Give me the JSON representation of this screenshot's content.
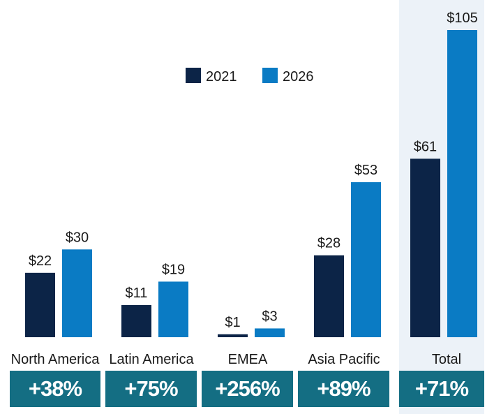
{
  "colors": {
    "series_2021": "#0c2447",
    "series_2026": "#0a7bc4",
    "total_highlight": "#ecf2f8",
    "growth_box": "#146e83",
    "growth_text": "#ffffff",
    "label_text": "#1a1a1a"
  },
  "chart_data": {
    "type": "bar",
    "categories": [
      "North America",
      "Latin America",
      "EMEA",
      "Asia Pacific",
      "Total"
    ],
    "series": [
      {
        "name": "2021",
        "values": [
          22,
          11,
          1,
          28,
          61
        ],
        "labels": [
          "$22",
          "$11",
          "$1",
          "$28",
          "$61"
        ]
      },
      {
        "name": "2026",
        "values": [
          30,
          19,
          3,
          53,
          105
        ],
        "labels": [
          "$30",
          "$19",
          "$3",
          "$53",
          "$105"
        ]
      }
    ],
    "growth": [
      "+38%",
      "+75%",
      "+256%",
      "+89%",
      "+71%"
    ],
    "highlighted_category": "Total",
    "legend_position": "top-center",
    "ylim": [
      0,
      105
    ],
    "grid": false
  }
}
